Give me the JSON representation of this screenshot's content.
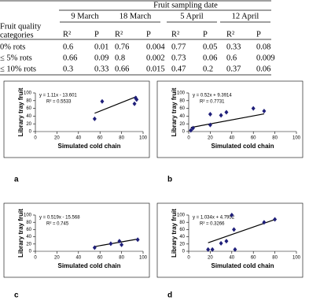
{
  "table": {
    "super_header": "Fruit sampling date",
    "row_header": [
      "Fruit quality",
      "categories"
    ],
    "dates": [
      "9 March",
      "18 March",
      "5 April",
      "12 April"
    ],
    "subheaders": [
      "R²",
      "P",
      "R²",
      "P",
      "R²",
      "P",
      "R²",
      "P"
    ],
    "rows": [
      {
        "label": "0% rots",
        "values": [
          0.6,
          0.01,
          0.76,
          0.004,
          0.77,
          0.05,
          0.33,
          0.08
        ]
      },
      {
        "label": "≤ 5% rots",
        "values": [
          0.66,
          0.09,
          0.8,
          0.002,
          0.73,
          0.06,
          0.6,
          0.009
        ]
      },
      {
        "label": "≤ 10% rots",
        "values": [
          0.3,
          0.33,
          0.66,
          0.015,
          0.47,
          0.2,
          0.37,
          0.06
        ]
      }
    ]
  },
  "chart_data": [
    {
      "type": "scatter",
      "panel": "a",
      "xlabel": "Simulated cold chain",
      "ylabel": "Library tray fruit",
      "equation": "y = 1.11x - 13.601",
      "r2": "R² = 0.5533",
      "trendline": {
        "slope": 1.11,
        "intercept": -13.601
      },
      "x": [
        55,
        62,
        92,
        93,
        94
      ],
      "values": [
        33,
        78,
        72,
        87,
        83
      ],
      "color": "#1f1f7a",
      "xlim": [
        0,
        100
      ],
      "xticks": [
        0,
        20,
        40,
        60,
        80,
        100
      ],
      "ylim": [
        0,
        100
      ],
      "yticks": [
        0,
        20,
        40,
        60,
        80,
        100
      ]
    },
    {
      "type": "scatter",
      "panel": "b",
      "xlabel": "Simulated cold chain",
      "ylabel": "Library tray fruit",
      "equation": "y = 0.52x + 9.3914",
      "r2": "R² = 0.7731",
      "trendline": {
        "slope": 0.52,
        "intercept": 9.3914
      },
      "x": [
        2,
        4,
        20,
        20,
        30,
        35,
        60,
        70
      ],
      "values": [
        3,
        9,
        17,
        45,
        42,
        50,
        60,
        53
      ],
      "color": "#1f1f7a",
      "xlim": [
        0,
        100
      ],
      "xticks": [
        0,
        20,
        40,
        60,
        80,
        100
      ],
      "ylim": [
        0,
        100
      ],
      "yticks": [
        0,
        20,
        40,
        60,
        80,
        100
      ]
    },
    {
      "type": "scatter",
      "panel": "c",
      "xlabel": "Simulated cold chain",
      "ylabel": "Library tray fruit",
      "equation": "y = 0.519x - 15.568",
      "r2": "R² = 0.745",
      "trendline": {
        "slope": 0.519,
        "intercept": -15.568
      },
      "x": [
        55,
        70,
        78,
        80,
        95
      ],
      "values": [
        10,
        21,
        28,
        18,
        32
      ],
      "color": "#1f1f7a",
      "xlim": [
        0,
        100
      ],
      "xticks": [
        0,
        20,
        40,
        60,
        80,
        100
      ],
      "ylim": [
        0,
        100
      ],
      "yticks": [
        0,
        20,
        40,
        60,
        80,
        100
      ]
    },
    {
      "type": "scatter",
      "panel": "d",
      "xlabel": "Simulated cold chain",
      "ylabel": "Library tray fruit",
      "equation": "y = 1.034x + 4.7952",
      "r2": "R² = 0.3266",
      "trendline": {
        "slope": 1.034,
        "intercept": 4.7952
      },
      "x": [
        18,
        22,
        30,
        35,
        40,
        42,
        43,
        70,
        80
      ],
      "values": [
        5,
        5,
        22,
        28,
        100,
        60,
        5,
        80,
        88
      ],
      "color": "#1f1f7a",
      "xlim": [
        0,
        100
      ],
      "xticks": [
        0,
        20,
        40,
        60,
        80,
        100
      ],
      "ylim": [
        0,
        100
      ],
      "yticks": [
        0,
        20,
        40,
        60,
        80,
        100
      ]
    }
  ]
}
